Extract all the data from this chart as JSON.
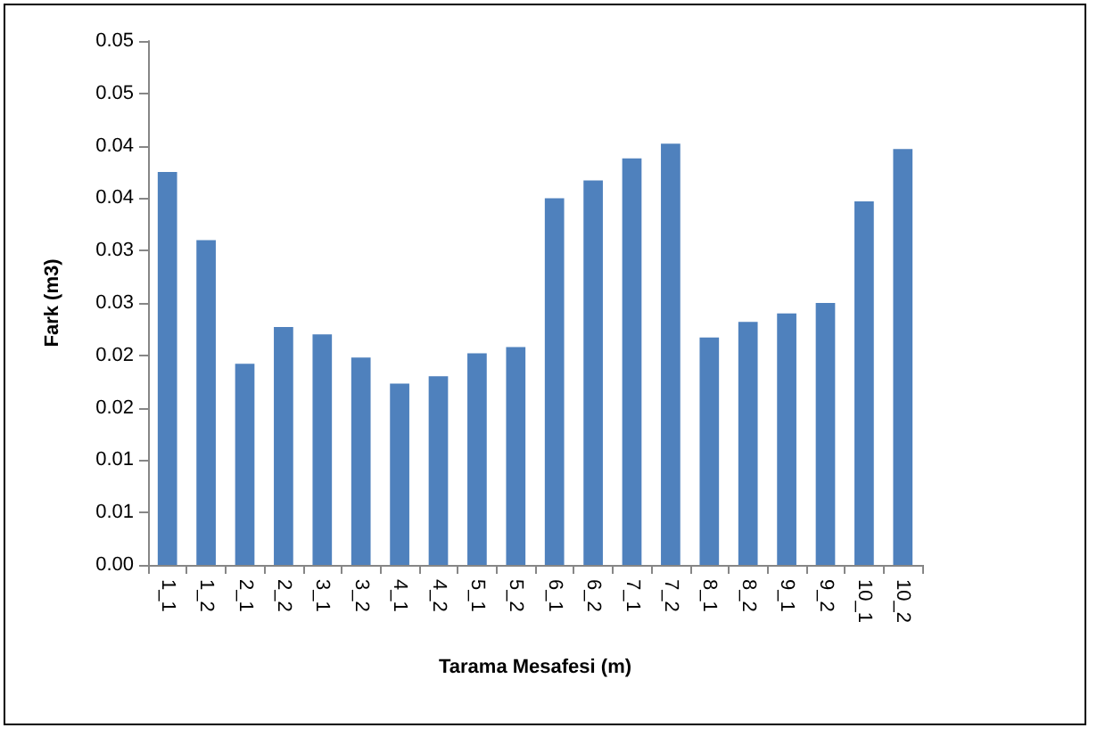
{
  "chart_data": {
    "type": "bar",
    "xlabel": "Tarama Mesafesi (m)",
    "ylabel": "Fark (m3)",
    "categories": [
      "1_1",
      "1_2",
      "2_1",
      "2_2",
      "3_1",
      "3_2",
      "4_1",
      "4_2",
      "5_1",
      "5_2",
      "6_1",
      "6_2",
      "7_1",
      "7_2",
      "8_1",
      "8_2",
      "9_1",
      "9_2",
      "10_1",
      "10_2"
    ],
    "values": [
      0.0375,
      0.031,
      0.0192,
      0.0227,
      0.022,
      0.0198,
      0.0173,
      0.018,
      0.0202,
      0.0208,
      0.035,
      0.0367,
      0.0388,
      0.0402,
      0.0217,
      0.0232,
      0.024,
      0.025,
      0.0347,
      0.0397
    ],
    "color": "#4f81bd",
    "ylim": [
      0,
      0.05
    ],
    "yticks": [
      {
        "value": 0,
        "label": "0.00"
      },
      {
        "value": 0.005,
        "label": "0.01"
      },
      {
        "value": 0.01,
        "label": "0.01"
      },
      {
        "value": 0.015,
        "label": "0.02"
      },
      {
        "value": 0.02,
        "label": "0.02"
      },
      {
        "value": 0.025,
        "label": "0.03"
      },
      {
        "value": 0.03,
        "label": "0.03"
      },
      {
        "value": 0.035,
        "label": "0.04"
      },
      {
        "value": 0.04,
        "label": "0.04"
      },
      {
        "value": 0.045,
        "label": "0.05"
      },
      {
        "value": 0.05,
        "label": "0.05"
      }
    ],
    "grid": false
  }
}
